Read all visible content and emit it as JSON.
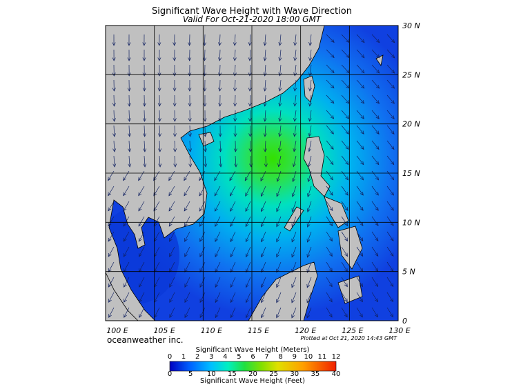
{
  "header": {
    "title": "Significant Wave Height with Wave Direction",
    "subtitle": "Valid For Oct-21-2020 18:00 GMT"
  },
  "map": {
    "lat_labels": [
      "30 N",
      "25 N",
      "20 N",
      "15 N",
      "10 N",
      "5 N",
      "0"
    ],
    "lon_labels": [
      "100 E",
      "105 E",
      "110 E",
      "115 E",
      "120 E",
      "125 E",
      "130 E"
    ]
  },
  "footer": {
    "credit": "oceanweather inc.",
    "plotted": "Plotted at Oct 21, 2020 14:43 GMT"
  },
  "legend": {
    "title_top": "Significant Wave Height (Meters)",
    "meters": [
      0,
      1,
      2,
      3,
      4,
      5,
      6,
      7,
      8,
      9,
      10,
      11,
      12
    ],
    "feet": [
      0,
      5,
      10,
      15,
      20,
      25,
      30,
      35,
      40
    ],
    "title_bottom": "Significant Wave Height (Feet)"
  }
}
